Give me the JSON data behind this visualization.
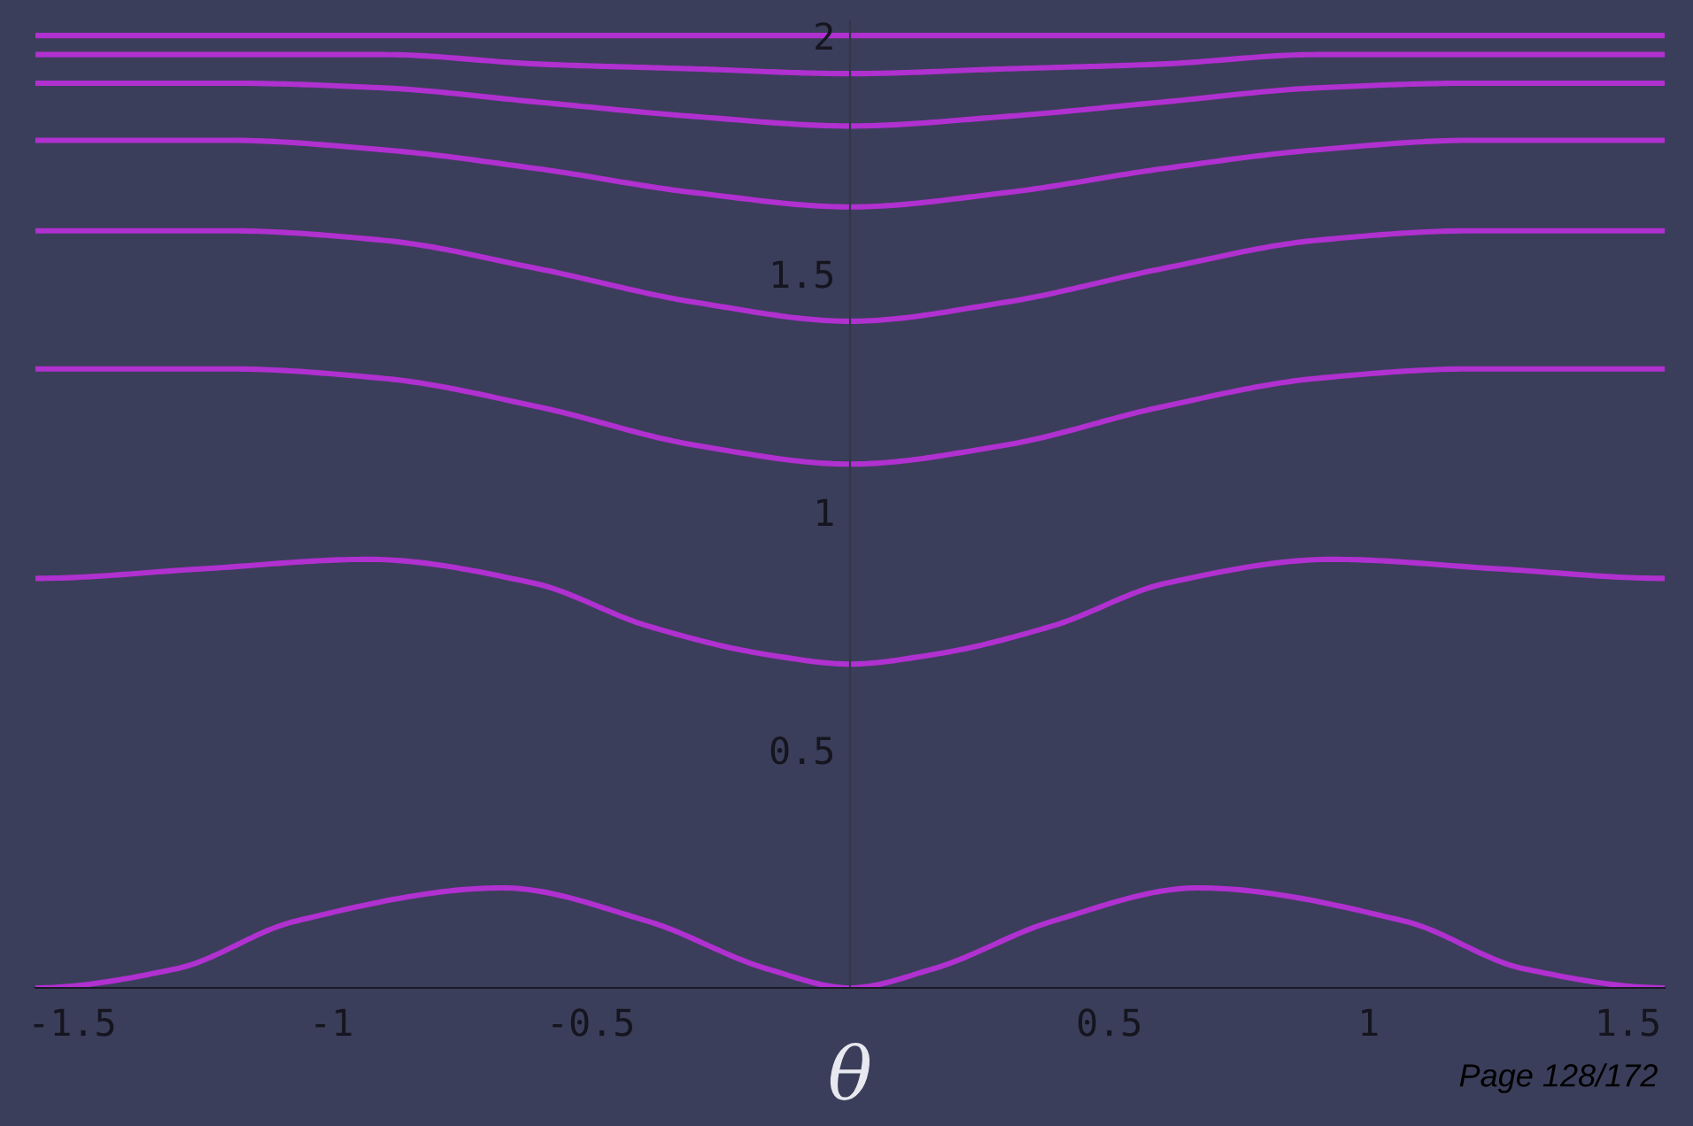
{
  "chart_data": {
    "type": "line",
    "xlabel": "θ",
    "xlim": [
      -1.5708,
      1.5708
    ],
    "ylim": [
      0,
      2.03
    ],
    "xticks": [
      -1.5,
      -1,
      -0.5,
      0.5,
      1,
      1.5
    ],
    "yticks": [
      0.5,
      1,
      1.5,
      2
    ],
    "grid": false,
    "annotations": [
      "Page 128/172"
    ],
    "series": [
      {
        "color": "#b030d0",
        "x": [
          -1.5708,
          0,
          1.5708
        ],
        "values": [
          2.0,
          2.0,
          2.0
        ]
      },
      {
        "color": "#b030d0",
        "x": [
          -1.5708,
          -1.2,
          -0.9,
          -0.6,
          -0.3,
          0,
          0.3,
          0.6,
          0.9,
          1.2,
          1.5708
        ],
        "values": [
          1.96,
          1.96,
          1.96,
          1.94,
          1.93,
          1.92,
          1.93,
          1.94,
          1.96,
          1.96,
          1.96
        ]
      },
      {
        "color": "#b030d0",
        "x": [
          -1.5708,
          -1.2,
          -0.9,
          -0.6,
          -0.3,
          0,
          0.3,
          0.6,
          0.9,
          1.2,
          1.5708
        ],
        "values": [
          1.9,
          1.9,
          1.89,
          1.86,
          1.83,
          1.81,
          1.83,
          1.86,
          1.89,
          1.9,
          1.9
        ]
      },
      {
        "color": "#b030d0",
        "x": [
          -1.5708,
          -1.2,
          -0.9,
          -0.6,
          -0.3,
          0,
          0.3,
          0.6,
          0.9,
          1.2,
          1.5708
        ],
        "values": [
          1.78,
          1.78,
          1.76,
          1.72,
          1.67,
          1.64,
          1.67,
          1.72,
          1.76,
          1.78,
          1.78
        ]
      },
      {
        "color": "#b030d0",
        "x": [
          -1.5708,
          -1.2,
          -0.9,
          -0.6,
          -0.3,
          0,
          0.3,
          0.6,
          0.9,
          1.2,
          1.5708
        ],
        "values": [
          1.59,
          1.59,
          1.57,
          1.51,
          1.44,
          1.4,
          1.44,
          1.51,
          1.57,
          1.59,
          1.59
        ]
      },
      {
        "color": "#b030d0",
        "x": [
          -1.5708,
          -1.2,
          -0.9,
          -0.6,
          -0.3,
          0,
          0.3,
          0.6,
          0.9,
          1.2,
          1.5708
        ],
        "values": [
          1.3,
          1.3,
          1.28,
          1.22,
          1.14,
          1.1,
          1.14,
          1.22,
          1.28,
          1.3,
          1.3
        ]
      },
      {
        "color": "#b030d0",
        "x": [
          -1.5708,
          -1.25,
          -0.93,
          -0.61,
          -0.39,
          -0.16,
          0,
          0.16,
          0.39,
          0.61,
          0.93,
          1.25,
          1.5708
        ],
        "values": [
          0.86,
          0.88,
          0.9,
          0.85,
          0.76,
          0.7,
          0.68,
          0.7,
          0.76,
          0.85,
          0.9,
          0.88,
          0.86
        ]
      },
      {
        "color": "#b030d0",
        "x": [
          -1.5708,
          -1.3,
          -1.07,
          -0.67,
          -0.39,
          -0.16,
          0,
          0.16,
          0.39,
          0.67,
          1.07,
          1.3,
          1.5708
        ],
        "values": [
          0,
          0.04,
          0.14,
          0.21,
          0.14,
          0.04,
          0,
          0.04,
          0.14,
          0.21,
          0.14,
          0.04,
          0
        ]
      }
    ]
  }
}
